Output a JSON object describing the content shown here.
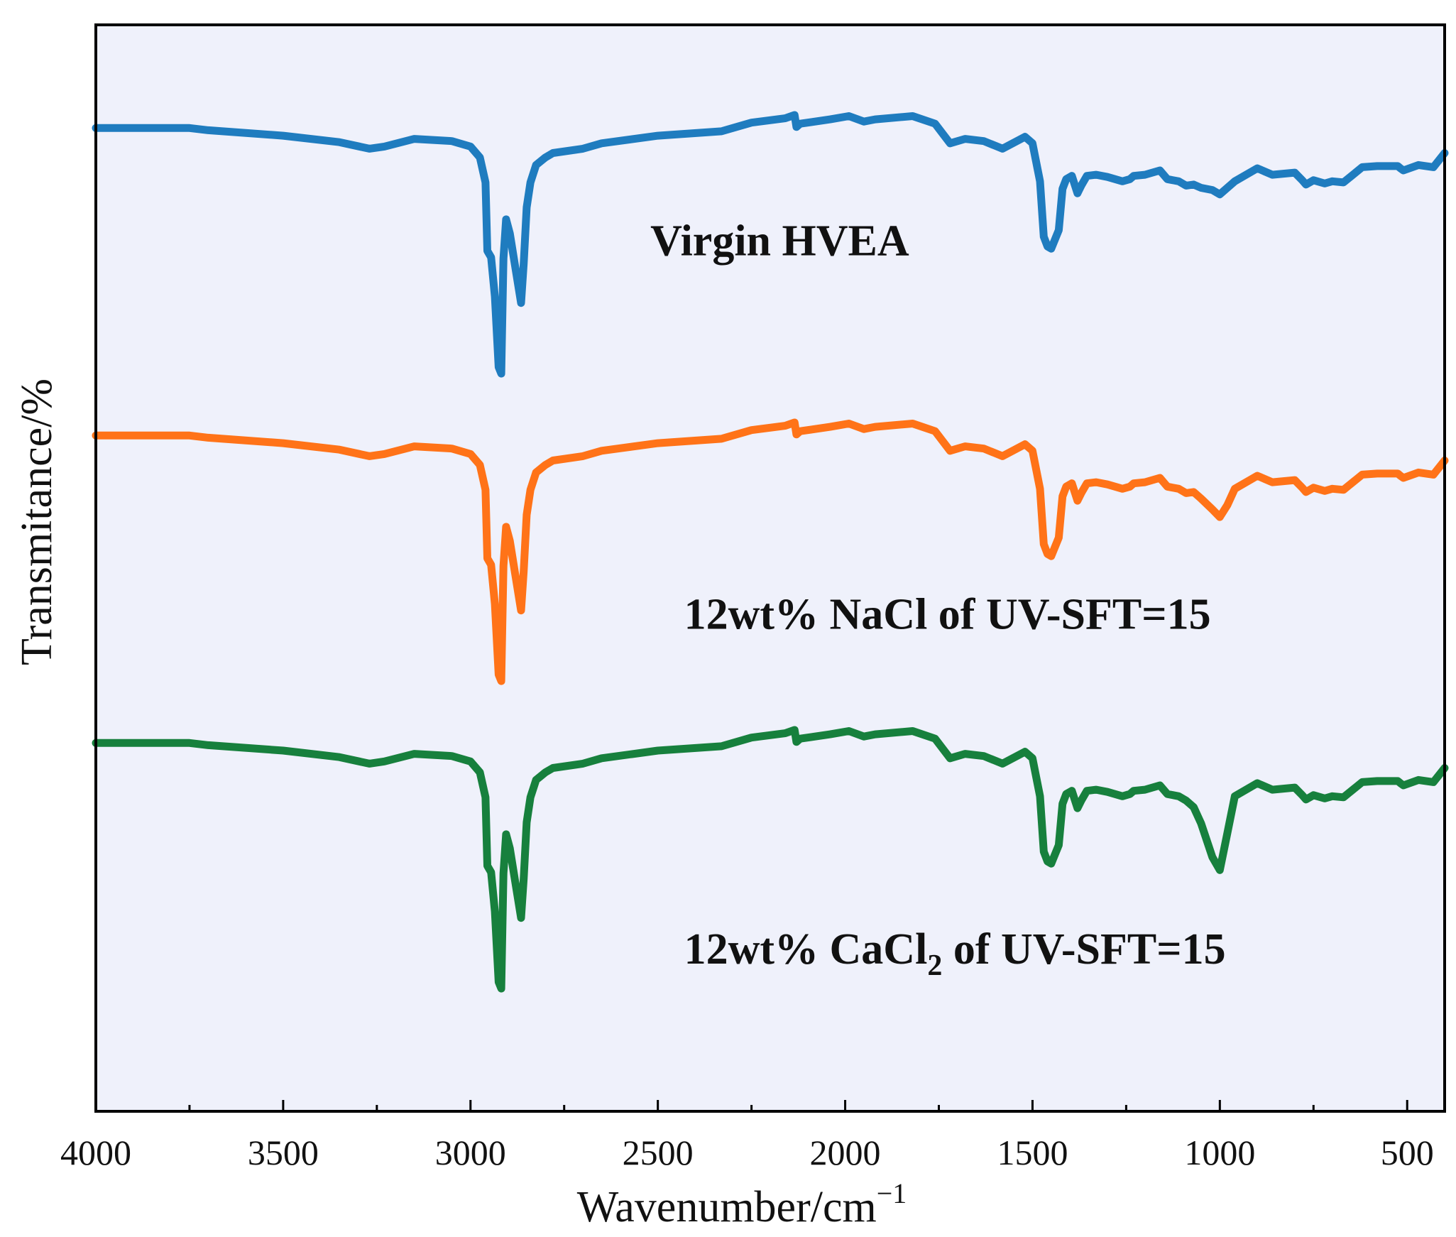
{
  "chart_data": {
    "type": "line",
    "title": "",
    "xlabel": "Wavenumber/cm",
    "xlabel_sup": "−1",
    "ylabel": "Transmitance/%",
    "xlim": [
      4000,
      400
    ],
    "x_reversed": true,
    "xticks": [
      4000,
      3500,
      3000,
      2500,
      2000,
      1500,
      1000,
      500
    ],
    "xtick_labels": [
      "4000",
      "3500",
      "3000",
      "2500",
      "2000",
      "1500",
      "1000",
      "500"
    ],
    "minor_xticks": [
      3750,
      3250,
      2750,
      2250,
      1750,
      1250,
      750
    ],
    "yticks": [],
    "ylim": [
      0,
      100
    ],
    "background": "#eff1fb",
    "grid": false,
    "legend": "none",
    "series": [
      {
        "name": "Virgin HVEA",
        "label_main": "Virgin HVEA",
        "label_sub": "",
        "label_tail": "",
        "color": "#1f7cbf",
        "offset": 0,
        "label_x": 2520,
        "label_y": 78.8
      },
      {
        "name": "12wt% NaCl of UV-SFT=15",
        "label_main": "12wt% NaCl of UV-SFT=15",
        "label_sub": "",
        "label_tail": "",
        "color": "#ff7318",
        "offset": -28.3,
        "label_x": 2430,
        "label_y": 44.4
      },
      {
        "name": "12wt% CaCl2 of UV-SFT=15",
        "label_main": "12wt% CaCl",
        "label_sub": "2",
        "label_tail": " of UV-SFT=15",
        "color": "#17803d",
        "offset": -56.6,
        "label_x": 2430,
        "label_y": 13.6
      }
    ],
    "base_curve": {
      "x": [
        4000,
        3750,
        3700,
        3500,
        3350,
        3270,
        3230,
        3150,
        3050,
        3000,
        2975,
        2960,
        2955,
        2945,
        2935,
        2925,
        2918,
        2912,
        2905,
        2895,
        2875,
        2865,
        2858,
        2850,
        2840,
        2825,
        2800,
        2780,
        2700,
        2650,
        2500,
        2330,
        2250,
        2160,
        2135,
        2130,
        2120,
        2040,
        1990,
        1950,
        1920,
        1820,
        1760,
        1720,
        1680,
        1630,
        1580,
        1520,
        1500,
        1480,
        1470,
        1460,
        1450,
        1430,
        1420,
        1410,
        1395,
        1380,
        1370,
        1355,
        1330,
        1300,
        1260,
        1240,
        1230,
        1200,
        1160,
        1140,
        1110,
        1090,
        1070,
        1050,
        1020,
        1000,
        960,
        900,
        860,
        800,
        780,
        770,
        750,
        720,
        700,
        670,
        620,
        580,
        525,
        518,
        510,
        470,
        430,
        400
      ],
      "y": [
        90.5,
        90.5,
        90.3,
        89.8,
        89.2,
        88.6,
        88.8,
        89.5,
        89.3,
        88.8,
        87.8,
        85.5,
        79.2,
        78.6,
        75.0,
        68.5,
        67.9,
        78.5,
        82.1,
        80.8,
        76.5,
        74.4,
        78.0,
        83.2,
        85.5,
        87.1,
        87.8,
        88.2,
        88.6,
        89.1,
        89.8,
        90.2,
        91.0,
        91.4,
        91.7,
        90.6,
        90.9,
        91.3,
        91.6,
        91.1,
        91.3,
        91.6,
        90.9,
        89.1,
        89.5,
        89.3,
        88.6,
        89.7,
        89.1,
        85.6,
        80.5,
        79.6,
        79.4,
        81.1,
        84.9,
        85.8,
        86.1,
        84.5,
        85.2,
        86.1,
        86.2,
        86.0,
        85.6,
        85.8,
        86.1,
        86.2,
        86.6,
        85.8,
        85.6,
        85.2,
        85.3,
        85.0,
        84.8,
        84.4,
        85.6,
        86.8,
        86.2,
        86.4,
        85.7,
        85.3,
        85.7,
        85.4,
        85.6,
        85.5,
        86.9,
        87.0,
        87.0,
        86.8,
        86.6,
        87.1,
        86.9,
        88.2
      ]
    },
    "na_overrides": {
      "x": [
        1070,
        1050,
        1020,
        1000,
        980,
        960
      ],
      "y": [
        -28.3,
        -28.3,
        -28.3,
        -28.3,
        -29.0,
        -28.3
      ],
      "abs_y": [
        57.0,
        56.4,
        55.4,
        54.7,
        55.8,
        57.3
      ]
    },
    "ca_overrides": {
      "abs_y": [
        28.0,
        26.5,
        23.4,
        22.2,
        25.6,
        29.0
      ]
    }
  }
}
